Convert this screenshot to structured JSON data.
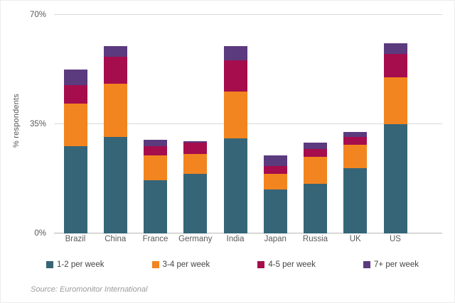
{
  "chart_data": {
    "type": "bar",
    "stacked": true,
    "title": "",
    "xlabel": "",
    "ylabel": "% respondents",
    "ylim": [
      0,
      70
    ],
    "yticks": [
      {
        "value": 0,
        "label": "0%"
      },
      {
        "value": 35,
        "label": "35%"
      },
      {
        "value": 70,
        "label": "70%"
      }
    ],
    "grid": true,
    "legend_position": "bottom",
    "categories": [
      "Brazil",
      "China",
      "France",
      "Germany",
      "India",
      "Japan",
      "Russia",
      "UK",
      "US"
    ],
    "series": [
      {
        "name": "1-2 per week",
        "color": "#366578",
        "values": [
          28,
          31,
          17,
          19,
          30.5,
          14,
          16,
          21,
          35
        ]
      },
      {
        "name": "3-4 per week",
        "color": "#F2851F",
        "values": [
          13.5,
          17,
          8,
          6.5,
          15,
          5,
          8.5,
          7.5,
          15
        ]
      },
      {
        "name": "4-5 per week",
        "color": "#A50D4D",
        "values": [
          6,
          8.5,
          3,
          3.5,
          10,
          2.5,
          2.5,
          2.5,
          7.5
        ]
      },
      {
        "name": "7+ per week",
        "color": "#5B3A7E",
        "values": [
          5,
          3.5,
          2,
          0.5,
          4.5,
          3.5,
          2,
          1.5,
          3.5
        ]
      }
    ]
  },
  "source": "Source: Euromonitor International"
}
